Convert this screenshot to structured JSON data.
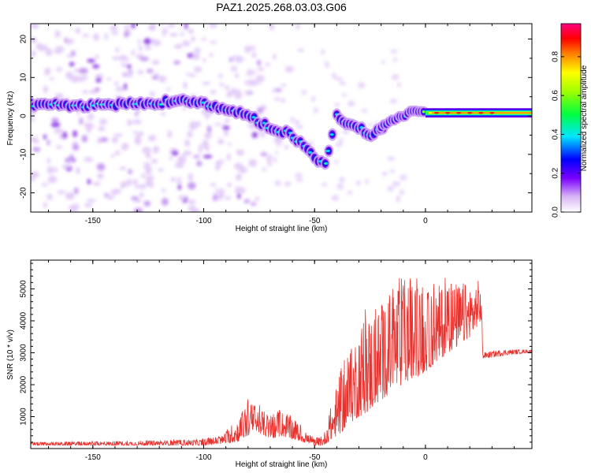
{
  "title": "PAZ1.2025.268.03.03.G06",
  "colors": {
    "snr_line": "#e8302c",
    "axis": "#000000"
  },
  "chart_data": [
    {
      "type": "heatmap",
      "name": "spectrogram",
      "xlabel": "Height of straight line (km)",
      "ylabel": "Frequency (Hz)",
      "xlim": [
        -178,
        48
      ],
      "ylim": [
        -25,
        24
      ],
      "xticks": [
        -150,
        -100,
        -50,
        0
      ],
      "xtick_labels": [
        "-150",
        "-100",
        "-50",
        "0"
      ],
      "yticks": [
        -20,
        -10,
        0,
        10,
        20
      ],
      "ytick_labels": [
        "-20",
        "-10",
        "0",
        "10",
        "20"
      ],
      "colorbar": {
        "label": "Normalized spectral amplitude",
        "range": [
          0,
          0.97
        ],
        "ticks": [
          0.0,
          0.2,
          0.4,
          0.6,
          0.8
        ],
        "tick_labels": [
          "0.0",
          "0.2",
          "0.4",
          "0.6",
          "0.8"
        ],
        "colormap": "rainbow (white-purple-blue-cyan-green-yellow-red-magenta)"
      },
      "ridge_x": [
        -178,
        -160,
        -140,
        -120,
        -110,
        -100,
        -90,
        -80,
        -70,
        -60,
        -55,
        -50,
        -45,
        -40,
        -35,
        -30,
        -25,
        -20,
        -15,
        -10,
        -5,
        0,
        10,
        20,
        30,
        40,
        48
      ],
      "ridge_y": [
        3,
        2.8,
        3,
        3.5,
        4,
        3,
        2,
        0,
        -3,
        -5,
        -8,
        -11,
        -13,
        0,
        -2,
        -3,
        -5,
        -3,
        -1,
        0,
        1.5,
        1,
        0.8,
        0.8,
        0.8,
        0.8,
        0.8
      ]
    },
    {
      "type": "line",
      "name": "snr",
      "xlabel": "Height of straight line (km)",
      "ylabel": "SNR (10 * v/v)",
      "xlim": [
        -178,
        48
      ],
      "ylim": [
        0,
        5900
      ],
      "xticks": [
        -150,
        -100,
        -50,
        0
      ],
      "xtick_labels": [
        "-150",
        "-100",
        "-50",
        "0"
      ],
      "yticks": [
        1000,
        2000,
        3000,
        4000,
        5000
      ],
      "ytick_labels": [
        "1000",
        "2000",
        "3000",
        "4000",
        "5000"
      ],
      "envelope_x": [
        -178,
        -120,
        -100,
        -92,
        -85,
        -80,
        -75,
        -70,
        -65,
        -60,
        -55,
        -50,
        -46,
        -42,
        -38,
        -34,
        -30,
        -25,
        -20,
        -15,
        -10,
        -5,
        0,
        5,
        10,
        15,
        20,
        25,
        26,
        30,
        35,
        40,
        48
      ],
      "envelope_lo": [
        100,
        100,
        100,
        150,
        200,
        400,
        500,
        300,
        400,
        300,
        200,
        100,
        100,
        300,
        500,
        800,
        1000,
        1200,
        1500,
        1800,
        2000,
        2200,
        2400,
        2700,
        3000,
        3200,
        3500,
        4000,
        2800,
        2850,
        2900,
        2950,
        3000
      ],
      "envelope_hi": [
        200,
        250,
        300,
        400,
        900,
        1500,
        1300,
        1000,
        1200,
        1000,
        600,
        300,
        400,
        1500,
        2500,
        3000,
        4000,
        4300,
        4500,
        5000,
        5500,
        5200,
        4900,
        5100,
        5200,
        5200,
        5200,
        5300,
        3000,
        3050,
        3100,
        3100,
        3100
      ]
    }
  ]
}
